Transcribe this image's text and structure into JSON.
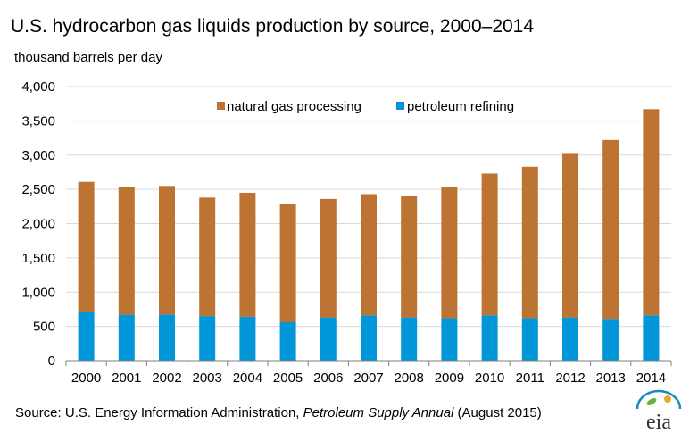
{
  "header": {
    "title": "U.S. hydrocarbon gas liquids production by source, 2000–2014",
    "units": "thousand barrels per day"
  },
  "footer": {
    "source_prefix": "Source: U.S. Energy Information Administration, ",
    "source_publication": "Petroleum Supply Annual",
    "source_suffix": " (August 2015)",
    "logo_text": "eia"
  },
  "colors": {
    "natural_gas_processing": "#BD7331",
    "petroleum_refining": "#0096D7",
    "gridline": "#D9D9D9",
    "axis": "#7F7F7F",
    "logo_arc": "#1A8BC2",
    "logo_leaf": "#6DAF3D",
    "logo_sun": "#F0A726"
  },
  "chart_data": {
    "type": "bar",
    "stacked": true,
    "categories": [
      "2000",
      "2001",
      "2002",
      "2003",
      "2004",
      "2005",
      "2006",
      "2007",
      "2008",
      "2009",
      "2010",
      "2011",
      "2012",
      "2013",
      "2014"
    ],
    "series": [
      {
        "name": "petroleum refining",
        "values": [
          710,
          670,
          670,
          650,
          640,
          560,
          630,
          660,
          630,
          620,
          660,
          620,
          630,
          610,
          660
        ]
      },
      {
        "name": "natural gas processing",
        "values": [
          1900,
          1860,
          1880,
          1730,
          1810,
          1720,
          1730,
          1770,
          1780,
          1910,
          2070,
          2210,
          2400,
          2610,
          3010
        ]
      }
    ],
    "xlabel": "",
    "ylabel": "thousand barrels per day",
    "ylim": [
      0,
      4000
    ],
    "yticks": [
      0,
      500,
      1000,
      1500,
      2000,
      2500,
      3000,
      3500,
      4000
    ],
    "ytick_labels": [
      "0",
      "500",
      "1,000",
      "1,500",
      "2,000",
      "2,500",
      "3,000",
      "3,500",
      "4,000"
    ],
    "grid": true,
    "legend": {
      "placement": "top-center",
      "entries": [
        "natural gas processing",
        "petroleum refining"
      ]
    }
  }
}
